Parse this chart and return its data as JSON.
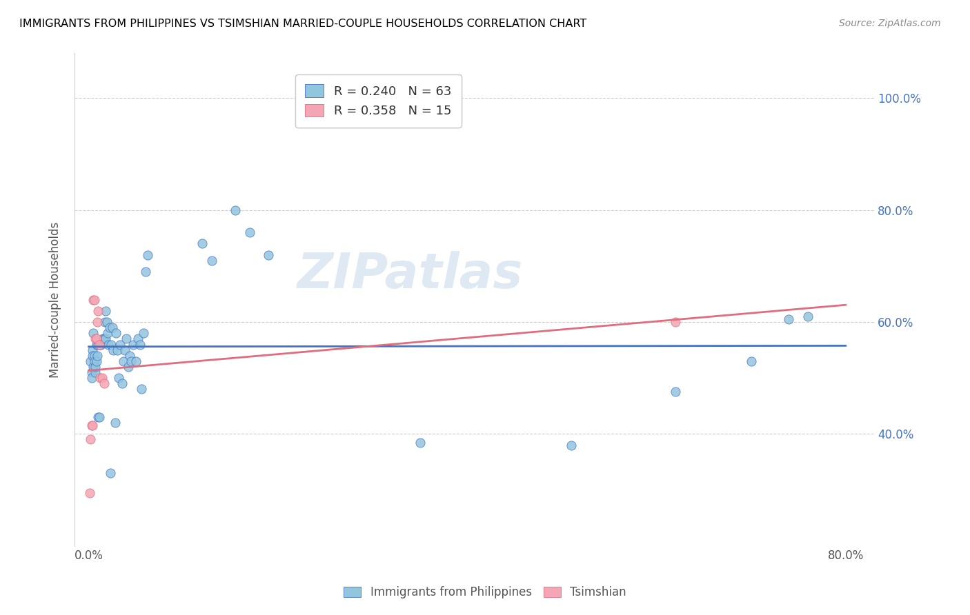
{
  "title": "IMMIGRANTS FROM PHILIPPINES VS TSIMSHIAN MARRIED-COUPLE HOUSEHOLDS CORRELATION CHART",
  "source": "Source: ZipAtlas.com",
  "ylabel": "Married-couple Households",
  "xlim": [
    0.0,
    0.8
  ],
  "ylim": [
    0.2,
    1.08
  ],
  "xtick_positions": [
    0.0,
    0.1,
    0.2,
    0.3,
    0.4,
    0.5,
    0.6,
    0.7,
    0.8
  ],
  "xticklabels": [
    "0.0%",
    "",
    "",
    "",
    "",
    "",
    "",
    "",
    "80.0%"
  ],
  "ytick_positions": [
    0.4,
    0.6,
    0.8,
    1.0
  ],
  "ytick_labels": [
    "40.0%",
    "60.0%",
    "80.0%",
    "100.0%"
  ],
  "legend_label1": "R = 0.240   N = 63",
  "legend_label2": "R = 0.358   N = 15",
  "blue_color": "#92c5de",
  "pink_color": "#f4a6b4",
  "line_blue": "#4472c4",
  "line_pink": "#e06c7d",
  "watermark": "ZIPatlas",
  "blue_x": [
    0.002,
    0.003,
    0.003,
    0.004,
    0.004,
    0.005,
    0.005,
    0.006,
    0.006,
    0.007,
    0.007,
    0.008,
    0.008,
    0.009,
    0.01,
    0.01,
    0.011,
    0.012,
    0.013,
    0.015,
    0.016,
    0.017,
    0.018,
    0.018,
    0.019,
    0.02,
    0.021,
    0.022,
    0.023,
    0.024,
    0.025,
    0.026,
    0.028,
    0.029,
    0.03,
    0.032,
    0.033,
    0.035,
    0.037,
    0.038,
    0.04,
    0.042,
    0.043,
    0.045,
    0.047,
    0.05,
    0.052,
    0.054,
    0.056,
    0.058,
    0.06,
    0.062,
    0.12,
    0.13,
    0.155,
    0.17,
    0.19,
    0.35,
    0.51,
    0.62,
    0.7,
    0.74,
    0.76
  ],
  "blue_y": [
    0.53,
    0.51,
    0.5,
    0.55,
    0.54,
    0.58,
    0.52,
    0.54,
    0.53,
    0.51,
    0.52,
    0.56,
    0.53,
    0.54,
    0.56,
    0.43,
    0.43,
    0.56,
    0.56,
    0.57,
    0.57,
    0.6,
    0.57,
    0.62,
    0.6,
    0.58,
    0.56,
    0.59,
    0.33,
    0.56,
    0.59,
    0.55,
    0.42,
    0.58,
    0.55,
    0.5,
    0.56,
    0.49,
    0.53,
    0.55,
    0.57,
    0.52,
    0.54,
    0.53,
    0.56,
    0.53,
    0.57,
    0.56,
    0.48,
    0.58,
    0.69,
    0.72,
    0.74,
    0.71,
    0.8,
    0.76,
    0.72,
    0.385,
    0.38,
    0.475,
    0.53,
    0.605,
    0.61
  ],
  "pink_x": [
    0.001,
    0.002,
    0.003,
    0.004,
    0.005,
    0.006,
    0.007,
    0.008,
    0.009,
    0.01,
    0.011,
    0.012,
    0.014,
    0.016,
    0.62
  ],
  "pink_y": [
    0.295,
    0.39,
    0.415,
    0.415,
    0.64,
    0.64,
    0.57,
    0.57,
    0.6,
    0.62,
    0.56,
    0.5,
    0.5,
    0.49,
    0.6
  ],
  "bottom_legend": [
    "Immigrants from Philippines",
    "Tsimshian"
  ]
}
